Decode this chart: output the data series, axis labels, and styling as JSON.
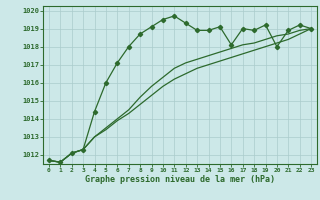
{
  "x": [
    0,
    1,
    2,
    3,
    4,
    5,
    6,
    7,
    8,
    9,
    10,
    11,
    12,
    13,
    14,
    15,
    16,
    17,
    18,
    19,
    20,
    21,
    22,
    23
  ],
  "line1": [
    1011.7,
    1011.6,
    1012.1,
    1012.3,
    1014.4,
    1016.0,
    1017.1,
    1018.0,
    1018.7,
    1019.1,
    1019.5,
    1019.7,
    1019.3,
    1018.9,
    1018.9,
    1019.1,
    1018.1,
    1019.0,
    1018.9,
    1019.2,
    1018.0,
    1018.9,
    1019.2,
    1019.0
  ],
  "line2": [
    1011.7,
    1011.6,
    1012.1,
    1012.3,
    1013.0,
    1013.5,
    1014.0,
    1014.5,
    1015.2,
    1015.8,
    1016.3,
    1016.8,
    1017.1,
    1017.3,
    1017.5,
    1017.7,
    1017.9,
    1018.1,
    1018.2,
    1018.4,
    1018.6,
    1018.7,
    1018.9,
    1019.0
  ],
  "line3": [
    1011.7,
    1011.6,
    1012.1,
    1012.3,
    1013.0,
    1013.4,
    1013.9,
    1014.3,
    1014.8,
    1015.3,
    1015.8,
    1016.2,
    1016.5,
    1016.8,
    1017.0,
    1017.2,
    1017.4,
    1017.6,
    1017.8,
    1018.0,
    1018.2,
    1018.4,
    1018.7,
    1019.0
  ],
  "line_color": "#2d6a2d",
  "bg_color": "#cce8e8",
  "grid_color": "#aacccc",
  "xlabel": "Graphe pression niveau de la mer (hPa)",
  "ylim": [
    1011.5,
    1020.25
  ],
  "yticks": [
    1012,
    1013,
    1014,
    1015,
    1016,
    1017,
    1018,
    1019,
    1020
  ],
  "xticks": [
    0,
    1,
    2,
    3,
    4,
    5,
    6,
    7,
    8,
    9,
    10,
    11,
    12,
    13,
    14,
    15,
    16,
    17,
    18,
    19,
    20,
    21,
    22,
    23
  ]
}
